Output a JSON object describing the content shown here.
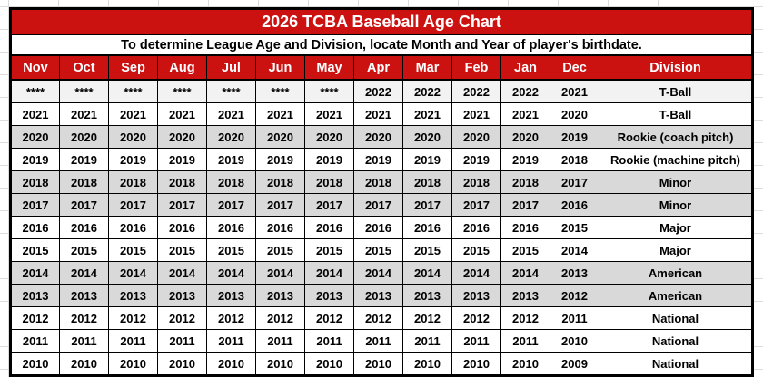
{
  "title": "2026 TCBA Baseball Age Chart",
  "subtitle": "To determine League Age and Division, locate Month and Year of player's birthdate.",
  "colors": {
    "header_red": "#CC1111",
    "header_text": "#FFFFFF",
    "cell_text": "#000000",
    "border": "#000000",
    "margin_gridline": "#DCDCDC",
    "shades": {
      "light": "#F2F2F2",
      "white": "#FFFFFF",
      "gray": "#D9D9D9"
    }
  },
  "chart_data": {
    "type": "table",
    "columns": [
      "Nov",
      "Oct",
      "Sep",
      "Aug",
      "Jul",
      "Jun",
      "May",
      "Apr",
      "Mar",
      "Feb",
      "Jan",
      "Dec",
      "Division"
    ],
    "rows": [
      {
        "years": [
          "****",
          "****",
          "****",
          "****",
          "****",
          "****",
          "****",
          "2022",
          "2022",
          "2022",
          "2022",
          "2021"
        ],
        "division": "T-Ball",
        "shade": "light"
      },
      {
        "years": [
          "2021",
          "2021",
          "2021",
          "2021",
          "2021",
          "2021",
          "2021",
          "2021",
          "2021",
          "2021",
          "2021",
          "2020"
        ],
        "division": "T-Ball",
        "shade": "white"
      },
      {
        "years": [
          "2020",
          "2020",
          "2020",
          "2020",
          "2020",
          "2020",
          "2020",
          "2020",
          "2020",
          "2020",
          "2020",
          "2019"
        ],
        "division": "Rookie (coach pitch)",
        "shade": "gray"
      },
      {
        "years": [
          "2019",
          "2019",
          "2019",
          "2019",
          "2019",
          "2019",
          "2019",
          "2019",
          "2019",
          "2019",
          "2019",
          "2018"
        ],
        "division": "Rookie (machine pitch)",
        "shade": "white"
      },
      {
        "years": [
          "2018",
          "2018",
          "2018",
          "2018",
          "2018",
          "2018",
          "2018",
          "2018",
          "2018",
          "2018",
          "2018",
          "2017"
        ],
        "division": "Minor",
        "shade": "gray"
      },
      {
        "years": [
          "2017",
          "2017",
          "2017",
          "2017",
          "2017",
          "2017",
          "2017",
          "2017",
          "2017",
          "2017",
          "2017",
          "2016"
        ],
        "division": "Minor",
        "shade": "gray"
      },
      {
        "years": [
          "2016",
          "2016",
          "2016",
          "2016",
          "2016",
          "2016",
          "2016",
          "2016",
          "2016",
          "2016",
          "2016",
          "2015"
        ],
        "division": "Major",
        "shade": "white"
      },
      {
        "years": [
          "2015",
          "2015",
          "2015",
          "2015",
          "2015",
          "2015",
          "2015",
          "2015",
          "2015",
          "2015",
          "2015",
          "2014"
        ],
        "division": "Major",
        "shade": "white"
      },
      {
        "years": [
          "2014",
          "2014",
          "2014",
          "2014",
          "2014",
          "2014",
          "2014",
          "2014",
          "2014",
          "2014",
          "2014",
          "2013"
        ],
        "division": "American",
        "shade": "gray"
      },
      {
        "years": [
          "2013",
          "2013",
          "2013",
          "2013",
          "2013",
          "2013",
          "2013",
          "2013",
          "2013",
          "2013",
          "2013",
          "2012"
        ],
        "division": "American",
        "shade": "gray"
      },
      {
        "years": [
          "2012",
          "2012",
          "2012",
          "2012",
          "2012",
          "2012",
          "2012",
          "2012",
          "2012",
          "2012",
          "2012",
          "2011"
        ],
        "division": "National",
        "shade": "white"
      },
      {
        "years": [
          "2011",
          "2011",
          "2011",
          "2011",
          "2011",
          "2011",
          "2011",
          "2011",
          "2011",
          "2011",
          "2011",
          "2010"
        ],
        "division": "National",
        "shade": "white"
      },
      {
        "years": [
          "2010",
          "2010",
          "2010",
          "2010",
          "2010",
          "2010",
          "2010",
          "2010",
          "2010",
          "2010",
          "2010",
          "2009"
        ],
        "division": "National",
        "shade": "white"
      }
    ]
  }
}
